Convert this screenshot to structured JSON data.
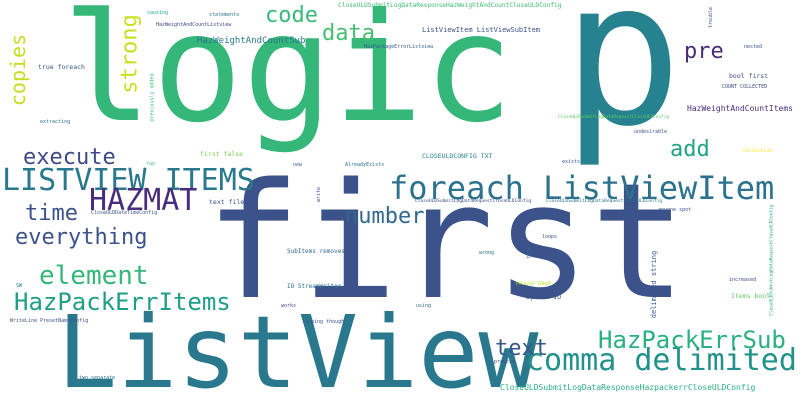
{
  "words": [
    {
      "text": "logic",
      "color": "#35b779"
    },
    {
      "text": "p",
      "color": "#26828e"
    },
    {
      "text": "first",
      "color": "#3b528b"
    },
    {
      "text": "ListView",
      "color": "#2a788e"
    },
    {
      "text": "foreach ListViewItem",
      "color": "#2c728e"
    },
    {
      "text": "LISTVIEW ITEMS",
      "color": "#2a788e"
    },
    {
      "text": "HAZMAT",
      "color": "#472d7b"
    },
    {
      "text": "execute",
      "color": "#3e4989"
    },
    {
      "text": "everything",
      "color": "#3b528b"
    },
    {
      "text": "time",
      "color": "#3b528b"
    },
    {
      "text": "number",
      "color": "#31688e"
    },
    {
      "text": "element",
      "color": "#35b779"
    },
    {
      "text": "HazPackErrItems",
      "color": "#1f9e89"
    },
    {
      "text": "comma delimited",
      "color": "#21918c"
    },
    {
      "text": "HazPackErrSub",
      "color": "#2ab07f"
    },
    {
      "text": "text",
      "color": "#38588c"
    },
    {
      "text": "add",
      "color": "#20a386"
    },
    {
      "text": "code",
      "color": "#3aba76"
    },
    {
      "text": "data",
      "color": "#44bf70"
    },
    {
      "text": "pre",
      "color": "#472c7a"
    },
    {
      "text": "strong",
      "color": "#c8e020"
    },
    {
      "text": "copies",
      "color": "#c2df23"
    },
    {
      "text": "HazWeightAndCountSub",
      "color": "#2a788e"
    },
    {
      "text": "HazWeightAndCountItems",
      "color": "#46307e"
    },
    {
      "text": "ListViewItem ListViewSubItem",
      "color": "#3b528b"
    },
    {
      "text": "CloseULDSubmitLogDataResponseHazWeightAndCountCloseULDConfig",
      "color": "#3bbb75"
    },
    {
      "text": "CloseULDSubmitLogDataResponseHazpackerrCloseULDConfig",
      "color": "#2ab07f"
    },
    {
      "text": "CloseULDSubmitLogDataRequestCloseULDConfig",
      "color": "#3e4c8a"
    },
    {
      "text": "CloseULDSubmitLogDataRequestCloseULDConfig",
      "color": "#2c728e"
    },
    {
      "text": "CloseULDSubmitLogDataRequestCloseULDConfig",
      "color": "#5ec962"
    },
    {
      "text": "CloseULDSubmitLogDataRequestCloseULDConfig",
      "color": "#27ad81"
    },
    {
      "text": "CLOSEULDCONFIG TXT",
      "color": "#26828e"
    },
    {
      "text": "HazPackageErrorListview",
      "color": "#355f8d"
    },
    {
      "text": "HazWeightAndCountListview",
      "color": "#3e4989"
    },
    {
      "text": "IO StreamWriter",
      "color": "#2d708e"
    },
    {
      "text": "SubItems removes",
      "color": "#31688e"
    },
    {
      "text": "CloseULDDateTimeConfig",
      "color": "#3b528b"
    },
    {
      "text": "WriteLine PresetNameConfig",
      "color": "#3b528b"
    },
    {
      "text": "delimited string",
      "color": "#38588c"
    },
    {
      "text": "System IO",
      "color": "#3b528b"
    },
    {
      "text": "Items bool",
      "color": "#5ec962"
    },
    {
      "text": "bool first",
      "color": "#3e4a89"
    },
    {
      "text": "COUNT COLLECTED",
      "color": "#3e4989"
    },
    {
      "text": "undesirable",
      "color": "#3b528b"
    },
    {
      "text": "true foreach",
      "color": "#3b528b"
    },
    {
      "text": "first false",
      "color": "#7ad151"
    },
    {
      "text": "text file",
      "color": "#3b528b"
    },
    {
      "text": "AlreadyExists",
      "color": "#2c728e"
    },
    {
      "text": "anyone spot",
      "color": "#3b528b"
    },
    {
      "text": "looping though",
      "color": "#3b528b"
    },
    {
      "text": "previously added",
      "color": "#35b779"
    },
    {
      "text": "two separate",
      "color": "#2c728e"
    },
    {
      "text": "PACKAGE ERROR",
      "color": "#bddf26"
    },
    {
      "text": "statements",
      "color": "#2c728e"
    },
    {
      "text": "causing",
      "color": "#25ac82"
    },
    {
      "text": "trouble",
      "color": "#3e4989"
    },
    {
      "text": "nested",
      "color": "#3b528b"
    },
    {
      "text": "extracting",
      "color": "#2c728e"
    },
    {
      "text": "collection",
      "color": "#fde725"
    },
    {
      "text": "increased",
      "color": "#3e4989"
    },
    {
      "text": "exists",
      "color": "#3b528b"
    },
    {
      "text": "loops",
      "color": "#3b528b"
    },
    {
      "text": "wrong",
      "color": "#2c728e"
    },
    {
      "text": "true",
      "color": "#2c728e"
    },
    {
      "text": "using",
      "color": "#31688e"
    },
    {
      "text": "works",
      "color": "#3e4989"
    },
    {
      "text": "new",
      "color": "#31688e"
    },
    {
      "text": "run",
      "color": "#35b779"
    },
    {
      "text": "program",
      "color": "#3b528b"
    },
    {
      "text": "SW",
      "color": "#2c728e"
    },
    {
      "text": "write",
      "color": "#3b528b"
    }
  ]
}
